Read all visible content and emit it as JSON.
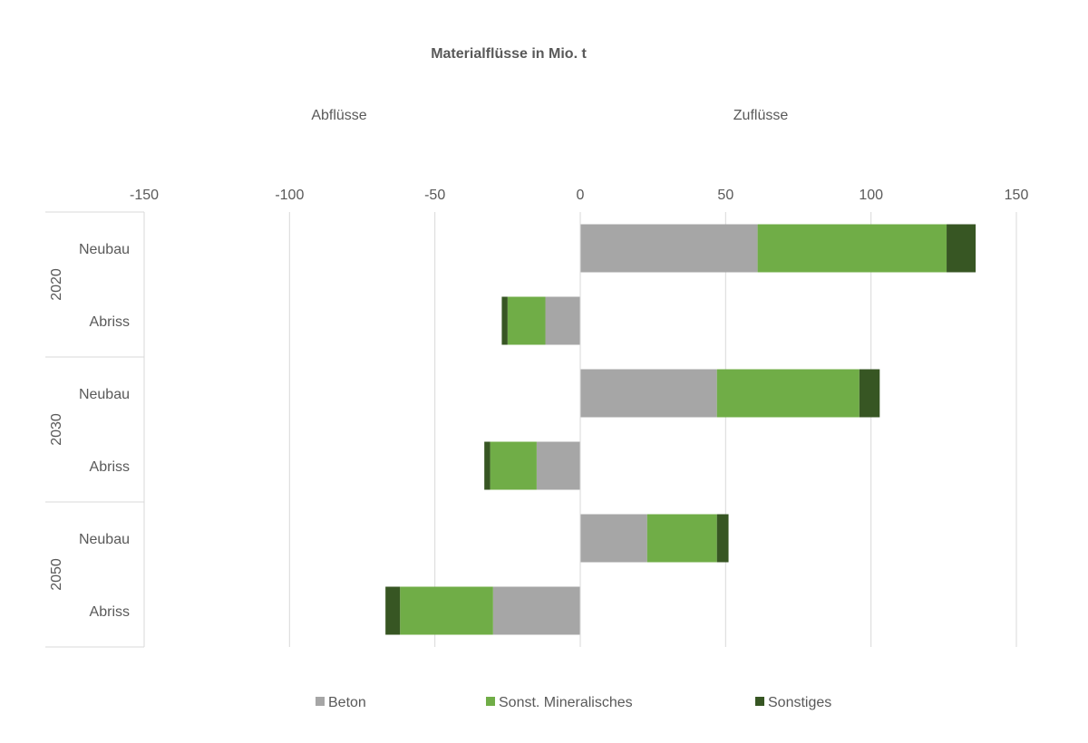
{
  "chart_data": {
    "type": "bar",
    "orientation": "horizontal",
    "stacked": true,
    "title": "Materialflüsse in Mio. t",
    "annotations": {
      "left": "Abflüsse",
      "right": "Zuflüsse"
    },
    "xlim": [
      -150,
      150
    ],
    "xticks": [
      -150,
      -100,
      -50,
      0,
      50,
      100,
      150
    ],
    "grid": "vertical",
    "legend_position": "bottom",
    "groups": [
      {
        "label": "2020",
        "rows": [
          {
            "label": "Neubau",
            "values": [
              61,
              65,
              10
            ]
          },
          {
            "label": "Abriss",
            "values": [
              -12,
              -13,
              -2
            ]
          }
        ]
      },
      {
        "label": "2030",
        "rows": [
          {
            "label": "Neubau",
            "values": [
              47,
              49,
              7
            ]
          },
          {
            "label": "Abriss",
            "values": [
              -15,
              -16,
              -2
            ]
          }
        ]
      },
      {
        "label": "2050",
        "rows": [
          {
            "label": "Neubau",
            "values": [
              23,
              24,
              4
            ]
          },
          {
            "label": "Abriss",
            "values": [
              -30,
              -32,
              -5
            ]
          }
        ]
      }
    ],
    "series": [
      {
        "name": "Beton",
        "color": "#a6a6a6"
      },
      {
        "name": "Sonst. Mineralisches",
        "color": "#70ad47"
      },
      {
        "name": "Sonstiges",
        "color": "#375623"
      }
    ]
  }
}
